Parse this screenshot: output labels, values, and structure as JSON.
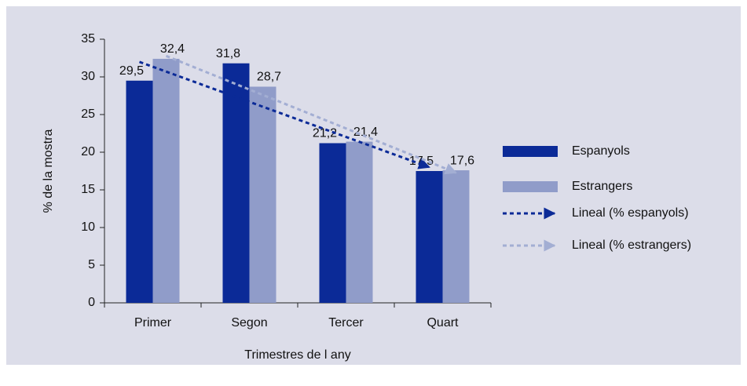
{
  "chart_data": {
    "type": "bar",
    "y_label": "% de la mostra",
    "x_label": "Trimestres de l any",
    "categories": [
      "Primer",
      "Segon",
      "Tercer",
      "Quart"
    ],
    "series": [
      {
        "name": "Espanyols",
        "color": "#0b2a97",
        "values": [
          29.5,
          31.8,
          21.2,
          17.5
        ],
        "value_labels": [
          "29,5",
          "31,8",
          "21,2",
          "17,5"
        ]
      },
      {
        "name": "Estrangers",
        "color": "#909cc9",
        "values": [
          32.4,
          28.7,
          21.4,
          17.6
        ],
        "value_labels": [
          "32,4",
          "28,7",
          "21,4",
          "17,6"
        ]
      }
    ],
    "trendlines": [
      {
        "name": "Lineal (% espanyols)",
        "color": "#0b2a97"
      },
      {
        "name": "Lineal (% estrangers)",
        "color": "#a3aed3"
      }
    ],
    "ylim": [
      0,
      35
    ],
    "yticks": [
      0,
      5,
      10,
      15,
      20,
      25,
      30,
      35
    ]
  }
}
